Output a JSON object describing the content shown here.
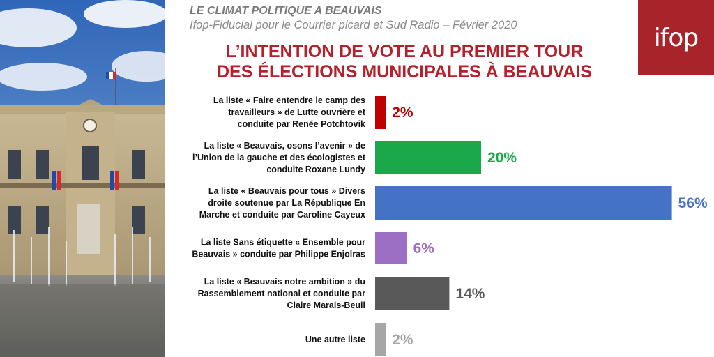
{
  "header": {
    "kicker": "LE CLIMAT POLITIQUE  A BEAUVAIS",
    "source": "Ifop-Fiducial pour le Courrier picard et Sud Radio – Février 2020",
    "logo_text": "ifop",
    "logo_color": "#a8232a"
  },
  "chart_data": {
    "type": "bar",
    "orientation": "horizontal",
    "title_lines": [
      "L’INTENTION DE VOTE AU PREMIER TOUR",
      "DES ÉLECTIONS MUNICIPALES À BEAUVAIS"
    ],
    "unit": "%",
    "xlim": [
      0,
      56
    ],
    "grid": false,
    "categories": [
      [
        "La liste « Faire entendre le camp des",
        "travailleurs » de Lutte ouvrière et",
        "conduite par Renée Potchtovik"
      ],
      [
        "La liste « Beauvais, osons l’avenir » de",
        "l’Union de la gauche et des écologistes et",
        "conduite Roxane Lundy"
      ],
      [
        "La liste « Beauvais pour tous » Divers",
        "droite soutenue par La République En",
        "Marche et conduite par Caroline Cayeux"
      ],
      [
        "La liste Sans étiquette « Ensemble pour",
        "Beauvais » conduite par Philippe Enjolras"
      ],
      [
        "La liste « Beauvais notre ambition » du",
        "Rassemblement national et conduite par",
        "Claire Marais-Beuil"
      ],
      [
        "Une autre liste"
      ]
    ],
    "values": [
      2,
      20,
      56,
      6,
      14,
      2
    ],
    "value_labels": [
      "2%",
      "20%",
      "56%",
      "6%",
      "14%",
      "2%"
    ],
    "colors": [
      "#c00000",
      "#1ba84a",
      "#4472c4",
      "#9c6fc4",
      "#595959",
      "#a6a6a6"
    ]
  }
}
